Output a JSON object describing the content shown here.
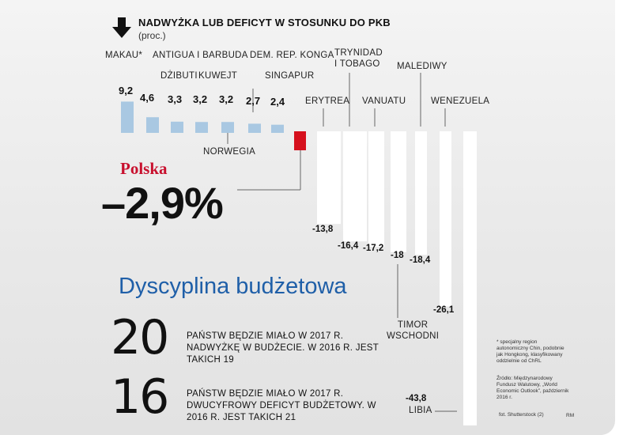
{
  "header": {
    "title": "NADWYŻKA LUB DEFICYT W STOSUNKU DO PKB",
    "subtitle": "(proc.)"
  },
  "highlight": {
    "country": "Polska",
    "value": "–2,9%"
  },
  "headline": "Dyscyplina budżetowa",
  "stats": [
    {
      "number": "20",
      "text": "PAŃSTW BĘDZIE MIAŁO W 2017 R. NADWYŻKĘ W BUDŻECIE. W 2016 R. JEST TAKICH 19"
    },
    {
      "number": "16",
      "text": "PAŃSTW BĘDZIE MIAŁO W 2017 R. DWUCYFROWY DEFICYT BUDŻETOWY. W 2016 R. JEST TAKICH 21"
    }
  ],
  "footnotes": {
    "special": "* specjalny region autonomiczny Chin, podobnie jak Hongkong, klasyfikowany oddzielnie od ChRL",
    "source": "Źródło: Międzynarodowy Fundusz Walutowy, „World Economic Outlook”, październik 2016 r.",
    "photo": "fot. Shutterstock (2)",
    "author": "RM"
  },
  "colors": {
    "surplus": "#a9c8e2",
    "deficit": "#ffffff",
    "poland": "#d6101d",
    "headline": "#1f5fa8",
    "polska_text": "#c8102e"
  },
  "chart_data": {
    "type": "bar",
    "title": "NADWYŻKA LUB DEFICYT W STOSUNKU DO PKB",
    "unit": "(proc.)",
    "categories": [
      "MAKAU*",
      "ANTIGUA I BARBUDA",
      "DŻIBUTI",
      "KUWEJT",
      "NORWEGIA",
      "DEM. REP. KONGA",
      "SINGAPUR",
      "Polska",
      "ERYTREA",
      "TRYNIDAD I TOBAGO",
      "VANUATU",
      "TIMOR WSCHODNI",
      "MALEDIWY",
      "WENEZUELA",
      "LIBIA"
    ],
    "values": [
      9.2,
      4.6,
      3.3,
      3.2,
      3.2,
      2.7,
      2.4,
      -2.9,
      -13.8,
      -16.4,
      -17.2,
      -18,
      -18.4,
      -26.1,
      -43.8
    ],
    "value_labels": [
      "9,2",
      "4,6",
      "3,3",
      "3,2",
      "3,2",
      "2,7",
      "2,4",
      "–2,9%",
      "-13,8",
      "-16,4",
      "-17,2",
      "-18",
      "-18,4",
      "-26,1",
      "-43,8"
    ],
    "category_labels": [
      [
        "MAKAU*"
      ],
      [
        "ANTIGUA I BARBUDA"
      ],
      [
        "DŻIBUTI"
      ],
      [
        "KUWEJT"
      ],
      [
        "NORWEGIA"
      ],
      [
        "DEM. REP. KONGA"
      ],
      [
        "SINGAPUR"
      ],
      [
        "Polska"
      ],
      [
        "ERYTREA"
      ],
      [
        "TRYNIDAD",
        "I TOBAGO"
      ],
      [
        "VANUATU"
      ],
      [
        "TIMOR",
        "WSCHODNI"
      ],
      [
        "MALEDIWY"
      ],
      [
        "WENEZUELA"
      ],
      [
        "LIBIA"
      ]
    ]
  }
}
